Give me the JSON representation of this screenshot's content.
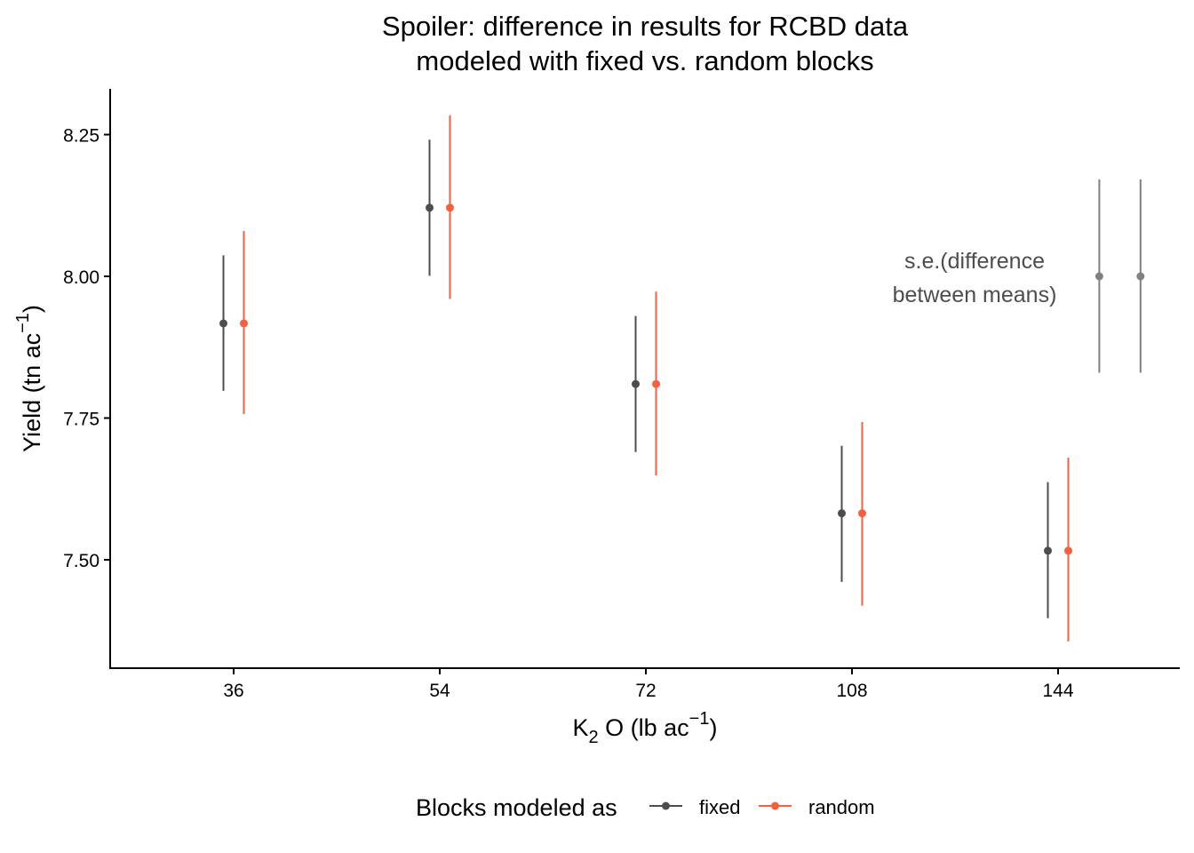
{
  "chart_data": {
    "type": "errorbar",
    "title": [
      "Spoiler: difference in results for RCBD data",
      "modeled with fixed vs. random blocks"
    ],
    "xlabel": {
      "main": "K",
      "sub": "2",
      "rest": " O (lb ac",
      "sup": "−1",
      "close": ")"
    },
    "ylabel": {
      "main": "Yield (tn ac",
      "sup": "−1",
      "close": ")"
    },
    "categories": [
      "36",
      "54",
      "72",
      "108",
      "144"
    ],
    "ylim": [
      7.31,
      8.33
    ],
    "yticks": [
      "7.50",
      "7.75",
      "8.00",
      "8.25"
    ],
    "ytick_values": [
      7.5,
      7.75,
      8.0,
      8.25
    ],
    "grid": false,
    "legend": {
      "title": "Blocks modeled as",
      "position": "bottom"
    },
    "series": [
      {
        "name": "fixed",
        "color": "#4d4d4d",
        "values": [
          7.917,
          8.121,
          7.81,
          7.582,
          7.516
        ],
        "lower": [
          7.798,
          8.001,
          7.69,
          7.461,
          7.397
        ],
        "upper": [
          8.037,
          8.241,
          7.93,
          7.701,
          7.637
        ]
      },
      {
        "name": "random",
        "color": "#f5603f",
        "values": [
          7.917,
          8.121,
          7.81,
          7.582,
          7.516
        ],
        "lower": [
          7.757,
          7.96,
          7.649,
          7.419,
          7.356
        ],
        "upper": [
          8.08,
          8.284,
          7.973,
          7.743,
          7.68
        ]
      }
    ],
    "annotation": {
      "lines": [
        "s.e.(difference",
        "between means)"
      ],
      "color": "#808080",
      "bars": [
        {
          "x_category_index": 5.2,
          "value": 8.0,
          "lower": 7.83,
          "upper": 8.171
        },
        {
          "x_category_index": 5.4,
          "value": 8.0,
          "lower": 7.83,
          "upper": 8.171
        }
      ]
    }
  }
}
